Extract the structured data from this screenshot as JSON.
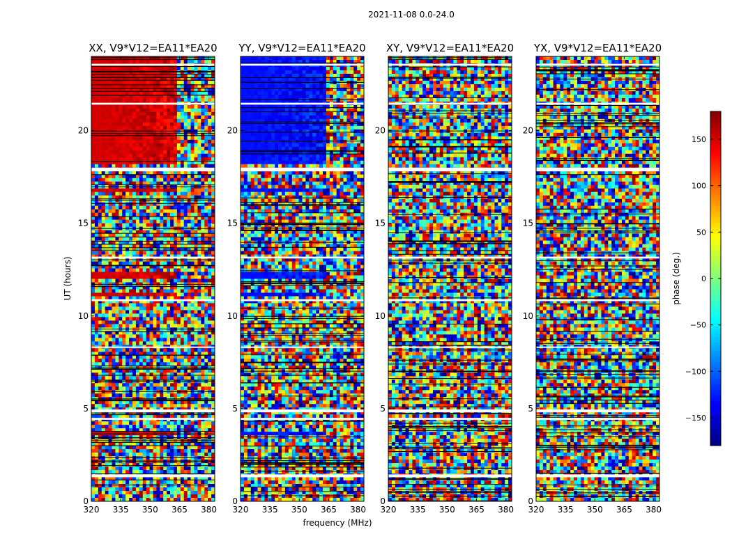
{
  "figure": {
    "suptitle": "2021-11-08 0.0-24.0",
    "ylabel": "UT (hours)",
    "xlabel": "frequency (MHz)"
  },
  "colorbar": {
    "label": "phase (deg.)",
    "range": [
      -180,
      180
    ],
    "ticks": [
      150,
      100,
      50,
      0,
      -50,
      -100,
      -150
    ],
    "tick_labels": [
      "150",
      "100",
      "50",
      "0",
      "−50",
      "−100",
      "−150"
    ],
    "colormap": "jet"
  },
  "chart_data": [
    {
      "type": "heatmap",
      "title": "XX, V9*V12=EA11*EA20",
      "x_range": [
        320,
        383
      ],
      "y_range": [
        0,
        24
      ],
      "x_ticks": [
        320,
        335,
        350,
        365,
        380
      ],
      "y_ticks": [
        0,
        5,
        10,
        15,
        20
      ],
      "value": "phase (deg.)",
      "structure": {
        "coherent_phase_deg": 150,
        "coherent_blocks_hours": [
          [
            18.2,
            20.8
          ],
          [
            20.8,
            24.0
          ],
          [
            16.6,
            16.9
          ],
          [
            12.0,
            12.3
          ],
          [
            11.0,
            11.3
          ],
          [
            3.5,
            3.7
          ]
        ],
        "coherent_max_freq_mhz": 363
      }
    },
    {
      "type": "heatmap",
      "title": "YY, V9*V12=EA11*EA20",
      "x_range": [
        320,
        383
      ],
      "y_range": [
        0,
        24
      ],
      "x_ticks": [
        320,
        335,
        350,
        365,
        380
      ],
      "y_ticks": [
        0,
        5,
        10,
        15,
        20
      ],
      "value": "phase (deg.)",
      "structure": {
        "coherent_phase_deg": -130,
        "coherent_blocks_hours": [
          [
            18.2,
            20.8
          ],
          [
            20.8,
            24.0
          ],
          [
            16.6,
            16.9
          ],
          [
            12.0,
            12.3
          ],
          [
            11.0,
            11.3
          ],
          [
            3.5,
            3.7
          ]
        ],
        "coherent_max_freq_mhz": 363
      }
    },
    {
      "type": "heatmap",
      "title": "XY, V9*V12=EA11*EA20",
      "x_range": [
        320,
        383
      ],
      "y_range": [
        0,
        24
      ],
      "x_ticks": [
        320,
        335,
        350,
        365,
        380
      ],
      "y_ticks": [
        0,
        5,
        10,
        15,
        20
      ],
      "value": "phase (deg.)",
      "structure": {
        "coherent_phase_deg": null,
        "coherent_blocks_hours": [],
        "coherent_max_freq_mhz": null
      }
    },
    {
      "type": "heatmap",
      "title": "YX, V9*V12=EA11*EA20",
      "x_range": [
        320,
        383
      ],
      "y_range": [
        0,
        24
      ],
      "x_ticks": [
        320,
        335,
        350,
        365,
        380
      ],
      "y_ticks": [
        0,
        5,
        10,
        15,
        20
      ],
      "value": "phase (deg.)",
      "structure": {
        "coherent_phase_deg": null,
        "coherent_blocks_hours": [],
        "coherent_max_freq_mhz": null
      }
    }
  ],
  "flagged_bands_hours": [
    [
      1.3,
      1.45
    ],
    [
      4.8,
      4.95
    ],
    [
      4.4,
      4.5
    ],
    [
      8.3,
      8.35
    ],
    [
      10.8,
      10.9
    ],
    [
      13.1,
      13.2
    ],
    [
      17.8,
      18.0
    ],
    [
      21.4,
      21.5
    ],
    [
      23.5,
      23.6
    ]
  ]
}
